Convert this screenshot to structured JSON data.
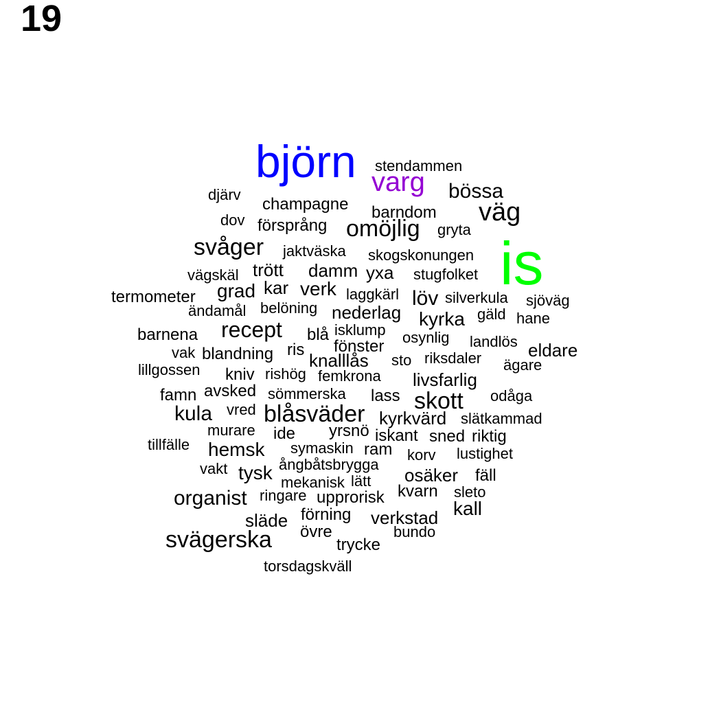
{
  "page_number": "19",
  "colors": {
    "default": "#000000",
    "björn": "#0000ff",
    "is": "#00ff00",
    "varg": "#9400d3"
  },
  "words": [
    {
      "text": "björn",
      "color": "#0000ff"
    },
    {
      "text": "is",
      "color": "#00ff00"
    },
    {
      "text": "varg",
      "color": "#9400d3"
    },
    {
      "text": "stendammen"
    },
    {
      "text": "bössa"
    },
    {
      "text": "väg"
    },
    {
      "text": "djärv"
    },
    {
      "text": "champagne"
    },
    {
      "text": "barndom"
    },
    {
      "text": "dov"
    },
    {
      "text": "försprång"
    },
    {
      "text": "omöjlig"
    },
    {
      "text": "gryta"
    },
    {
      "text": "svåger"
    },
    {
      "text": "jaktväska"
    },
    {
      "text": "skogskonungen"
    },
    {
      "text": "vägskäl"
    },
    {
      "text": "trött"
    },
    {
      "text": "damm"
    },
    {
      "text": "yxa"
    },
    {
      "text": "stugfolket"
    },
    {
      "text": "termometer"
    },
    {
      "text": "grad"
    },
    {
      "text": "kar"
    },
    {
      "text": "verk"
    },
    {
      "text": "laggkärl"
    },
    {
      "text": "löv"
    },
    {
      "text": "silverkula"
    },
    {
      "text": "sjöväg"
    },
    {
      "text": "ändamål"
    },
    {
      "text": "belöning"
    },
    {
      "text": "nederlag"
    },
    {
      "text": "gäld"
    },
    {
      "text": "hane"
    },
    {
      "text": "kyrka"
    },
    {
      "text": "barnena"
    },
    {
      "text": "recept"
    },
    {
      "text": "blå"
    },
    {
      "text": "isklump"
    },
    {
      "text": "osynlig"
    },
    {
      "text": "landlös"
    },
    {
      "text": "eldare"
    },
    {
      "text": "vak"
    },
    {
      "text": "blandning"
    },
    {
      "text": "ris"
    },
    {
      "text": "fönster"
    },
    {
      "text": "knalllås"
    },
    {
      "text": "sto"
    },
    {
      "text": "riksdaler"
    },
    {
      "text": "ägare"
    },
    {
      "text": "lillgossen"
    },
    {
      "text": "kniv"
    },
    {
      "text": "rishög"
    },
    {
      "text": "femkrona"
    },
    {
      "text": "livsfarlig"
    },
    {
      "text": "famn"
    },
    {
      "text": "avsked"
    },
    {
      "text": "sömmerska"
    },
    {
      "text": "lass"
    },
    {
      "text": "skott"
    },
    {
      "text": "odåga"
    },
    {
      "text": "kula"
    },
    {
      "text": "vred"
    },
    {
      "text": "blåsväder"
    },
    {
      "text": "kyrkvärd"
    },
    {
      "text": "slätkammad"
    },
    {
      "text": "murare"
    },
    {
      "text": "ide"
    },
    {
      "text": "yrsnö"
    },
    {
      "text": "iskant"
    },
    {
      "text": "sned"
    },
    {
      "text": "riktig"
    },
    {
      "text": "tillfälle"
    },
    {
      "text": "hemsk"
    },
    {
      "text": "symaskin"
    },
    {
      "text": "ram"
    },
    {
      "text": "korv"
    },
    {
      "text": "lustighet"
    },
    {
      "text": "vakt"
    },
    {
      "text": "tysk"
    },
    {
      "text": "ångbåtsbrygga"
    },
    {
      "text": "osäker"
    },
    {
      "text": "fäll"
    },
    {
      "text": "mekanisk"
    },
    {
      "text": "lätt"
    },
    {
      "text": "organist"
    },
    {
      "text": "ringare"
    },
    {
      "text": "upprorisk"
    },
    {
      "text": "kvarn"
    },
    {
      "text": "sleto"
    },
    {
      "text": "kall"
    },
    {
      "text": "släde"
    },
    {
      "text": "förning"
    },
    {
      "text": "verkstad"
    },
    {
      "text": "övre"
    },
    {
      "text": "bundo"
    },
    {
      "text": "svägerska"
    },
    {
      "text": "trycke"
    },
    {
      "text": "torsdagskväll"
    }
  ]
}
